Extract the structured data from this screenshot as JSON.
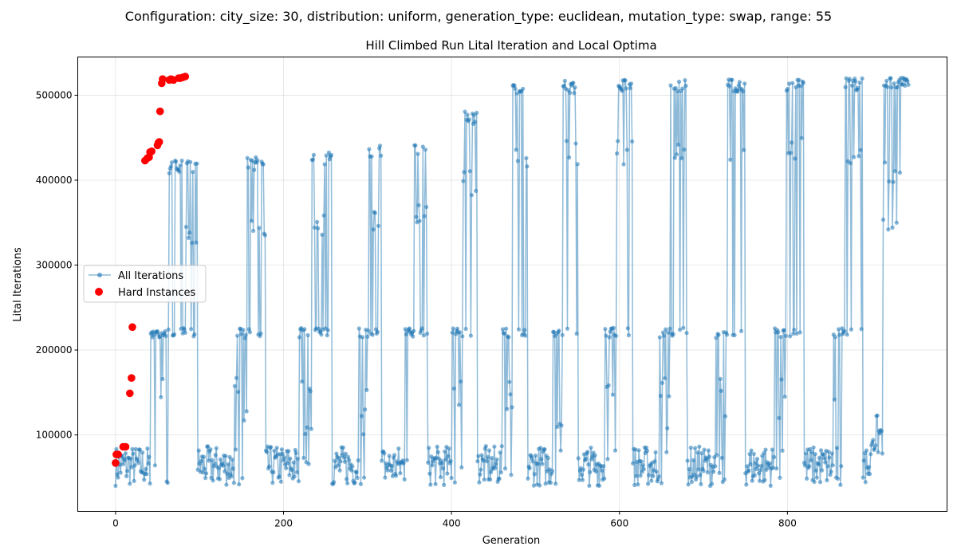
{
  "suptitle": "Configuration: city_size: 30, distribution: uniform, generation_type: euclidean, mutation_type: swap, range: 55",
  "chart_data": {
    "type": "scatter",
    "title": "Hill Climbed Run Lital Iteration and Local Optima",
    "xlabel": "Generation",
    "ylabel": "Lital Iterations",
    "xlim": [
      -45,
      990
    ],
    "ylim": [
      10000,
      545000
    ],
    "x_ticks": [
      0,
      200,
      400,
      600,
      800
    ],
    "y_ticks": [
      100000,
      200000,
      300000,
      400000,
      500000
    ],
    "grid": true,
    "legend_position": "center-left",
    "colors": {
      "all": "#1f77b4",
      "hard": "#ff0000"
    },
    "series": [
      {
        "name": "All Iterations",
        "style": "line-with-markers",
        "cycles": [
          {
            "x_start": 0,
            "x_end": 115,
            "low_min": 40000,
            "low_max": 87000,
            "mid": [
              148000,
              226000
            ],
            "spike": 423000
          },
          {
            "x_start": 115,
            "x_end": 190,
            "low_min": 40000,
            "low_max": 87000,
            "mid": [
              226000
            ],
            "spike": 427000
          },
          {
            "x_start": 190,
            "x_end": 270,
            "low_min": 40000,
            "low_max": 87000,
            "mid": [
              226000
            ],
            "spike": 433000
          },
          {
            "x_start": 270,
            "x_end": 325,
            "low_min": 40000,
            "low_max": 87000,
            "mid": [
              226000
            ],
            "spike": 441000
          },
          {
            "x_start": 325,
            "x_end": 380,
            "low_min": 40000,
            "low_max": 87000,
            "mid": [
              226000
            ],
            "spike": 444000
          },
          {
            "x_start": 380,
            "x_end": 440,
            "low_min": 40000,
            "low_max": 87000,
            "mid": [
              226000
            ],
            "spike": 481000
          },
          {
            "x_start": 440,
            "x_end": 500,
            "low_min": 40000,
            "low_max": 87000,
            "mid": [
              226000
            ],
            "spike": 513000
          },
          {
            "x_start": 500,
            "x_end": 560,
            "low_min": 40000,
            "low_max": 87000,
            "mid": [
              226000
            ],
            "spike": 517000
          },
          {
            "x_start": 560,
            "x_end": 625,
            "low_min": 40000,
            "low_max": 87000,
            "mid": [
              226000
            ],
            "spike": 518000
          },
          {
            "x_start": 625,
            "x_end": 690,
            "low_min": 40000,
            "low_max": 87000,
            "mid": [
              226000
            ],
            "spike": 518000
          },
          {
            "x_start": 690,
            "x_end": 760,
            "low_min": 40000,
            "low_max": 87000,
            "mid": [
              226000
            ],
            "spike": 519000
          },
          {
            "x_start": 760,
            "x_end": 830,
            "low_min": 40000,
            "low_max": 87000,
            "mid": [
              226000
            ],
            "spike": 520000
          },
          {
            "x_start": 830,
            "x_end": 900,
            "low_min": 40000,
            "low_max": 87000,
            "mid": [
              226000
            ],
            "spike": 520000
          },
          {
            "x_start": 900,
            "x_end": 945,
            "low_min": 74000,
            "low_max": 124000,
            "mid": [],
            "spike": 521000
          }
        ]
      },
      {
        "name": "Hard Instances",
        "style": "markers",
        "points": [
          [
            0,
            67000
          ],
          [
            1,
            77000
          ],
          [
            3,
            77000
          ],
          [
            9,
            86000
          ],
          [
            12,
            86000
          ],
          [
            17,
            149000
          ],
          [
            19,
            167000
          ],
          [
            20,
            227000
          ],
          [
            35,
            423000
          ],
          [
            38,
            426000
          ],
          [
            40,
            427000
          ],
          [
            41,
            433000
          ],
          [
            43,
            434000
          ],
          [
            50,
            441000
          ],
          [
            51,
            444000
          ],
          [
            52,
            445000
          ],
          [
            53,
            481000
          ],
          [
            55,
            514000
          ],
          [
            56,
            519000
          ],
          [
            64,
            518000
          ],
          [
            66,
            519000
          ],
          [
            69,
            518000
          ],
          [
            75,
            520000
          ],
          [
            77,
            520000
          ],
          [
            80,
            521000
          ],
          [
            83,
            522000
          ]
        ]
      }
    ]
  }
}
